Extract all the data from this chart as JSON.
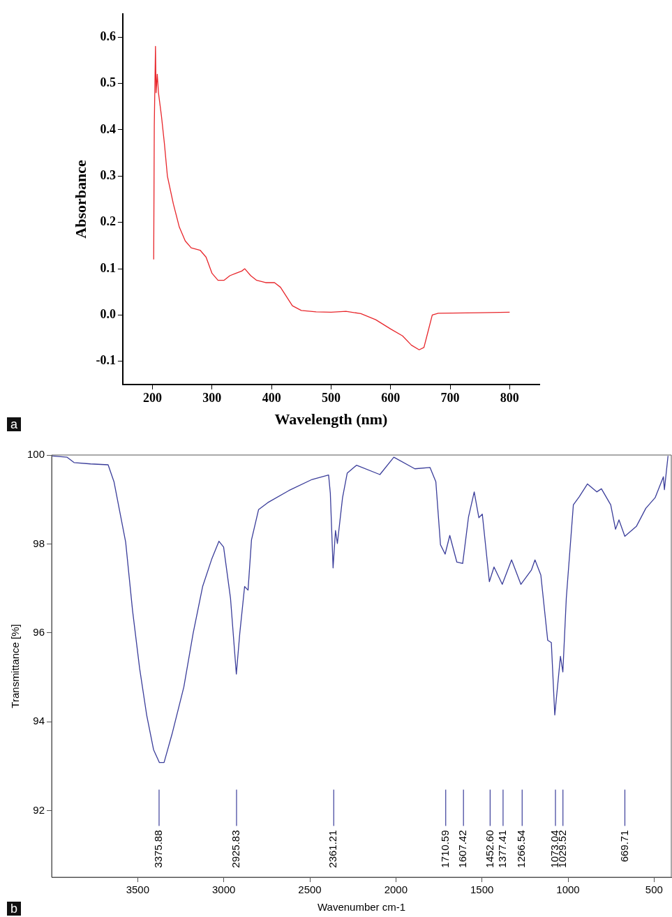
{
  "chart_data": [
    {
      "type": "line",
      "xlabel": "Wavelength (nm)",
      "ylabel": "Absorbance",
      "xlim": [
        150,
        850
      ],
      "xticks": [
        200,
        300,
        400,
        500,
        600,
        700,
        800
      ],
      "ylim": [
        -0.15,
        0.65
      ],
      "yticks": [
        -0.1,
        {
          "value": 0,
          "label": "0.0"
        },
        0.1,
        0.2,
        0.3,
        0.4,
        0.5,
        0.6
      ],
      "grid": false,
      "legend": false,
      "marker": "none",
      "annotations": [
        "a"
      ],
      "series": [
        {
          "color": "#e8262b",
          "x": [
            202,
            203,
            205,
            206,
            208,
            210,
            215,
            220,
            225,
            235,
            245,
            255,
            265,
            280,
            290,
            300,
            310,
            320,
            330,
            340,
            350,
            355,
            365,
            375,
            390,
            405,
            415,
            425,
            435,
            450,
            475,
            500,
            525,
            550,
            575,
            600,
            620,
            635,
            648,
            656,
            662,
            670,
            680,
            750,
            800
          ],
          "values": [
            0.12,
            0.41,
            0.58,
            0.48,
            0.52,
            0.48,
            0.43,
            0.37,
            0.3,
            0.24,
            0.19,
            0.16,
            0.145,
            0.14,
            0.125,
            0.09,
            0.075,
            0.075,
            0.085,
            0.09,
            0.095,
            0.1,
            0.085,
            0.075,
            0.07,
            0.07,
            0.06,
            0.04,
            0.02,
            0.01,
            0.007,
            0.006,
            0.008,
            0.003,
            -0.01,
            -0.03,
            -0.045,
            -0.065,
            -0.075,
            -0.07,
            -0.04,
            0.0,
            0.004,
            0.005,
            0.006
          ]
        }
      ]
    },
    {
      "type": "line",
      "xlabel": "Wavenumber cm-1",
      "ylabel": "Transmittance [%]",
      "xlim": [
        4000,
        400
      ],
      "xticks": [
        3500,
        3000,
        2500,
        2000,
        1500,
        1000,
        500
      ],
      "ylim": [
        90.5,
        100
      ],
      "yticks": [
        92,
        94,
        96,
        98,
        100
      ],
      "grid": false,
      "legend": false,
      "marker": "none",
      "annotations": [
        "b"
      ],
      "ref_lines": [
        {
          "axis": "x",
          "value": 3375.88,
          "label": "3375.88"
        },
        {
          "axis": "x",
          "value": 2925.83,
          "label": "2925.83"
        },
        {
          "axis": "x",
          "value": 2361.21,
          "label": "2361.21"
        },
        {
          "axis": "x",
          "value": 1710.59,
          "label": "1710.59"
        },
        {
          "axis": "x",
          "value": 1607.42,
          "label": "1607.42"
        },
        {
          "axis": "x",
          "value": 1452.6,
          "label": "1452.60"
        },
        {
          "axis": "x",
          "value": 1377.41,
          "label": "1377.41"
        },
        {
          "axis": "x",
          "value": 1266.54,
          "label": "1266.54"
        },
        {
          "axis": "x",
          "value": 1073.04,
          "label": "1073.04"
        },
        {
          "axis": "x",
          "value": 1029.52,
          "label": "1029.52"
        },
        {
          "axis": "x",
          "value": 669.71,
          "label": "669.71"
        }
      ],
      "series": [
        {
          "color": "#3a3d9a",
          "x": [
            3997,
            3910,
            3870,
            3774,
            3672,
            3638,
            3598,
            3570,
            3530,
            3489,
            3448,
            3408,
            3374,
            3347,
            3300,
            3232,
            3178,
            3123,
            3069,
            3028,
            3001,
            2961,
            2927,
            2907,
            2879,
            2859,
            2839,
            2798,
            2744,
            2622,
            2487,
            2391,
            2381,
            2365,
            2351,
            2340,
            2310,
            2283,
            2229,
            2093,
            2012,
            1890,
            1802,
            1768,
            1741,
            1714,
            1687,
            1646,
            1612,
            1578,
            1545,
            1518,
            1498,
            1457,
            1430,
            1382,
            1328,
            1274,
            1213,
            1192,
            1158,
            1118,
            1097,
            1077,
            1044,
            1030,
            1010,
            969,
            935,
            887,
            833,
            806,
            752,
            724,
            704,
            670,
            602,
            548,
            494,
            446,
            440,
            419
          ],
          "values": [
            99.98,
            99.95,
            99.83,
            99.8,
            99.78,
            99.4,
            98.6,
            98.04,
            96.5,
            95.2,
            94.15,
            93.37,
            93.08,
            93.08,
            93.73,
            94.78,
            95.99,
            97.04,
            97.67,
            98.06,
            97.93,
            96.78,
            95.07,
            95.99,
            97.04,
            96.96,
            98.09,
            98.77,
            98.93,
            99.2,
            99.45,
            99.55,
            99.14,
            97.46,
            98.3,
            98.01,
            99.04,
            99.59,
            99.77,
            99.56,
            99.95,
            99.69,
            99.72,
            99.4,
            97.98,
            97.77,
            98.19,
            97.59,
            97.56,
            98.61,
            99.17,
            98.59,
            98.67,
            97.15,
            97.48,
            97.09,
            97.64,
            97.09,
            97.41,
            97.64,
            97.3,
            95.83,
            95.78,
            94.15,
            95.47,
            95.12,
            96.78,
            98.88,
            99.06,
            99.35,
            99.17,
            99.24,
            98.88,
            98.33,
            98.54,
            98.17,
            98.4,
            98.8,
            99.04,
            99.51,
            99.22,
            99.98
          ]
        }
      ]
    }
  ]
}
